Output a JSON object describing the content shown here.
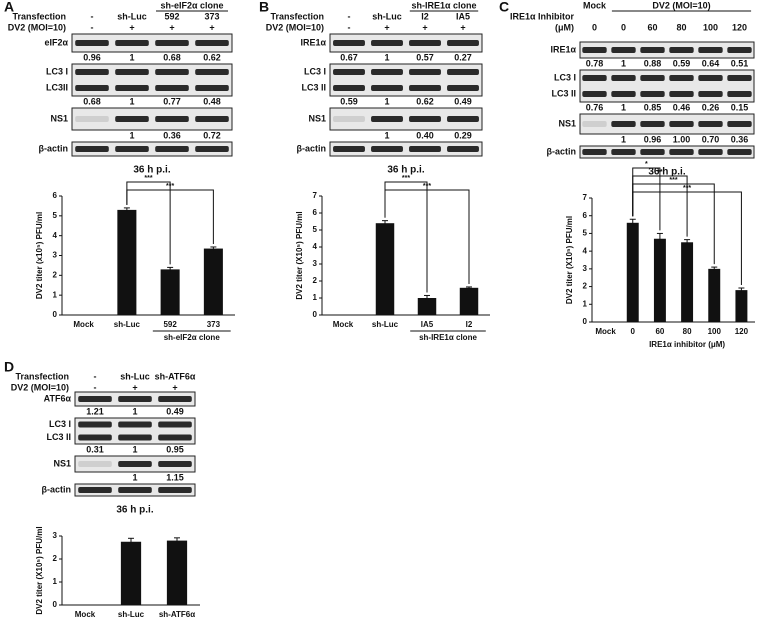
{
  "panels": [
    {
      "letter": "A",
      "header": {
        "groups": [
          "sh-eIF2α clone"
        ],
        "rows": [
          {
            "labels": [
              "Transfection"
            ],
            "cells": [
              "-",
              "sh-Luc",
              "592",
              "373"
            ]
          },
          {
            "labels": [
              "DV2 (MOI=10)"
            ],
            "cells": [
              "-",
              "+",
              "+",
              "+"
            ]
          }
        ]
      },
      "blots": [
        {
          "labels": [
            "eIF2α"
          ],
          "quant": [
            "0.96",
            "1",
            "0.68",
            "0.62"
          ]
        },
        {
          "labels": [
            "LC3 I",
            "LC3II"
          ],
          "quant": [
            "0.68",
            "1",
            "0.77",
            "0.48"
          ]
        },
        {
          "labels": [
            "NS1"
          ],
          "quant": [
            null,
            "1",
            "0.36",
            "0.72"
          ]
        },
        {
          "labels": [
            "β-actin"
          ]
        }
      ],
      "time": "36 h p.i.",
      "chart_data": {
        "type": "bar",
        "ylabel": "DV2 titer (x10⁵) PFU/ml",
        "categories": [
          "Mock",
          "sh-Luc",
          "592",
          "373"
        ],
        "values": [
          0,
          5.3,
          2.3,
          3.35
        ],
        "errors": [
          0,
          0.1,
          0.1,
          0.08
        ],
        "color": "#111111",
        "ylim": [
          0,
          6
        ],
        "yticks": [
          0,
          1,
          2,
          3,
          4,
          5,
          6
        ],
        "group_label": "sh-eIF2α clone",
        "significance": [
          "***",
          "***"
        ]
      }
    },
    {
      "letter": "B",
      "header": {
        "groups": [
          "sh-IRE1α clone"
        ],
        "rows": [
          {
            "labels": [
              "Transfection"
            ],
            "cells": [
              "-",
              "sh-Luc",
              "I2",
              "IA5"
            ]
          },
          {
            "labels": [
              "DV2 (MOI=10)"
            ],
            "cells": [
              "-",
              "+",
              "+",
              "+"
            ]
          }
        ]
      },
      "blots": [
        {
          "labels": [
            "IRE1α"
          ],
          "quant": [
            "0.67",
            "1",
            "0.57",
            "0.27"
          ]
        },
        {
          "labels": [
            "LC3 I",
            "LC3 II"
          ],
          "quant": [
            "0.59",
            "1",
            "0.62",
            "0.49"
          ]
        },
        {
          "labels": [
            "NS1"
          ],
          "quant": [
            null,
            "1",
            "0.40",
            "0.29"
          ]
        },
        {
          "labels": [
            "β-actin"
          ]
        }
      ],
      "time": "36 h p.i.",
      "chart_data": {
        "type": "bar",
        "ylabel": "DV2 titer (X10⁵) PFU/ml",
        "categories": [
          "Mock",
          "sh-Luc",
          "IA5",
          "I2"
        ],
        "values": [
          0,
          5.4,
          1.0,
          1.6
        ],
        "errors": [
          0,
          0.15,
          0.15,
          0.05
        ],
        "color": "#111111",
        "ylim": [
          0,
          7
        ],
        "yticks": [
          0,
          1,
          2,
          3,
          4,
          5,
          6,
          7
        ],
        "group_label": "sh-IRE1α clone",
        "significance": [
          "***",
          "***"
        ]
      }
    },
    {
      "letter": "C",
      "header": {
        "groups": [
          "Mock",
          "DV2 (MOI=10)"
        ],
        "rows": [
          {
            "labels": [
              "IRE1α Inhibitor",
              "(μM)"
            ],
            "cells": [
              "0",
              "0",
              "60",
              "80",
              "100",
              "120"
            ]
          }
        ]
      },
      "blots": [
        {
          "labels": [
            "IRE1α"
          ],
          "quant": [
            "0.78",
            "1",
            "0.88",
            "0.59",
            "0.64",
            "0.51"
          ]
        },
        {
          "labels": [
            "LC3 I",
            "LC3 II"
          ],
          "quant": [
            "0.76",
            "1",
            "0.85",
            "0.46",
            "0.26",
            "0.15"
          ]
        },
        {
          "labels": [
            "NS1"
          ],
          "quant": [
            null,
            "1",
            "0.96",
            "1.00",
            "0.70",
            "0.36"
          ]
        },
        {
          "labels": [
            "β-actin"
          ]
        }
      ],
      "time": "36 h p.i.",
      "chart_data": {
        "type": "bar",
        "ylabel": "DV2 titer (X10⁵) PFU/ml",
        "categories": [
          "Mock",
          "0",
          "60",
          "80",
          "100",
          "120"
        ],
        "values": [
          0,
          5.6,
          4.7,
          4.5,
          3.0,
          1.8
        ],
        "errors": [
          0,
          0.2,
          0.3,
          0.15,
          0.1,
          0.12
        ],
        "color": "#111111",
        "ylim": [
          0,
          7
        ],
        "yticks": [
          0,
          1,
          2,
          3,
          4,
          5,
          6,
          7
        ],
        "xlabel": "IRE1α inhibitor (μM)",
        "significance": [
          "*",
          "**",
          "***",
          "***"
        ]
      }
    },
    {
      "letter": "D",
      "header": {
        "rows": [
          {
            "labels": [
              "Transfection"
            ],
            "cells": [
              "-",
              "sh-Luc",
              "sh-ATF6α"
            ]
          },
          {
            "labels": [
              "DV2 (MOI=10)"
            ],
            "cells": [
              "-",
              "+",
              "+"
            ]
          }
        ]
      },
      "blots": [
        {
          "labels": [
            "ATF6α"
          ],
          "quant": [
            "1.21",
            "1",
            "0.49"
          ]
        },
        {
          "labels": [
            "LC3 I",
            "LC3 II"
          ],
          "quant": [
            "0.31",
            "1",
            "0.95"
          ]
        },
        {
          "labels": [
            "NS1"
          ],
          "quant": [
            null,
            "1",
            "1.15"
          ]
        },
        {
          "labels": [
            "β-actin"
          ]
        }
      ],
      "time": "36 h p.i.",
      "chart_data": {
        "type": "bar",
        "ylabel": "DV2 titer (X10⁵) PFU/ml",
        "categories": [
          "Mock",
          "sh-Luc",
          "sh-ATF6α"
        ],
        "values": [
          0,
          2.75,
          2.8
        ],
        "errors": [
          0,
          0.15,
          0.12
        ],
        "color": "#111111",
        "ylim": [
          0,
          3
        ],
        "yticks": [
          0,
          1,
          2,
          3
        ]
      }
    }
  ]
}
